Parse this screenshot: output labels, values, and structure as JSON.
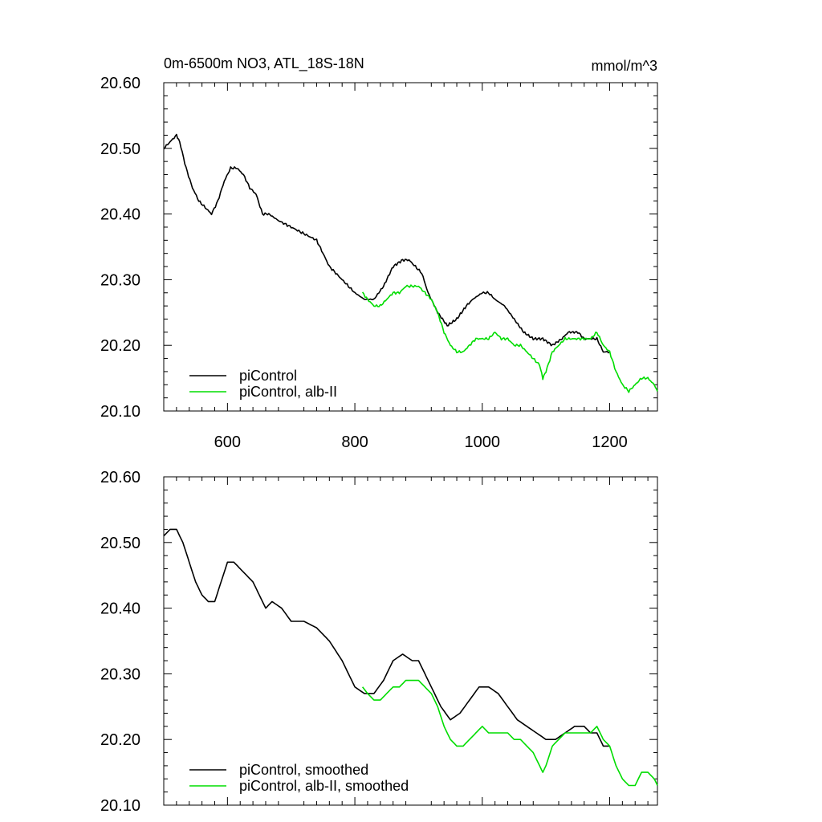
{
  "chart_data": [
    {
      "type": "line",
      "title": "0m-6500m NO3, ATL_18S-18N",
      "units": "mmol/m^3",
      "xlabel": "",
      "ylabel": "",
      "xlim": [
        500,
        1275
      ],
      "ylim": [
        20.1,
        20.6
      ],
      "x_ticks": [
        600,
        800,
        1000,
        1200
      ],
      "x_tick_labels": [
        "600",
        "800",
        "1000",
        "1200"
      ],
      "y_ticks": [
        20.1,
        20.2,
        20.3,
        20.4,
        20.5,
        20.6
      ],
      "y_tick_labels": [
        "20.10",
        "20.20",
        "20.30",
        "20.40",
        "20.50",
        "20.60"
      ],
      "grid": false,
      "legend_position": "bottom-left",
      "series": [
        {
          "name": "piControl",
          "color": "#000000",
          "x": [
            500,
            510,
            520,
            525,
            535,
            545,
            555,
            565,
            575,
            585,
            595,
            605,
            615,
            625,
            635,
            645,
            655,
            665,
            680,
            700,
            720,
            740,
            760,
            780,
            800,
            815,
            830,
            845,
            860,
            875,
            885,
            895,
            905,
            915,
            930,
            945,
            960,
            975,
            985,
            1000,
            1010,
            1020,
            1035,
            1050,
            1065,
            1080,
            1095,
            1110,
            1125,
            1135,
            1150,
            1160,
            1170,
            1180,
            1190,
            1200
          ],
          "y": [
            20.5,
            20.51,
            20.52,
            20.51,
            20.47,
            20.44,
            20.42,
            20.41,
            20.4,
            20.42,
            20.45,
            20.47,
            20.47,
            20.46,
            20.44,
            20.43,
            20.4,
            20.4,
            20.39,
            20.38,
            20.37,
            20.36,
            20.32,
            20.3,
            20.28,
            20.27,
            20.27,
            20.29,
            20.32,
            20.33,
            20.33,
            20.32,
            20.31,
            20.28,
            20.25,
            20.23,
            20.24,
            20.26,
            20.27,
            20.28,
            20.28,
            20.27,
            20.26,
            20.24,
            20.22,
            20.21,
            20.21,
            20.2,
            20.21,
            20.22,
            20.22,
            20.21,
            20.21,
            20.21,
            20.19,
            20.19
          ]
        },
        {
          "name": "piControl, alb-II",
          "color": "#00dd00",
          "x": [
            812,
            820,
            830,
            840,
            850,
            860,
            870,
            880,
            890,
            900,
            910,
            920,
            930,
            940,
            950,
            960,
            970,
            980,
            990,
            1000,
            1010,
            1020,
            1030,
            1040,
            1050,
            1060,
            1070,
            1080,
            1090,
            1095,
            1100,
            1110,
            1120,
            1130,
            1140,
            1150,
            1160,
            1170,
            1180,
            1190,
            1200,
            1210,
            1220,
            1230,
            1240,
            1250,
            1260,
            1270,
            1275
          ],
          "y": [
            20.28,
            20.27,
            20.26,
            20.26,
            20.27,
            20.28,
            20.28,
            20.29,
            20.29,
            20.29,
            20.28,
            20.27,
            20.25,
            20.22,
            20.2,
            20.19,
            20.19,
            20.2,
            20.21,
            20.21,
            20.21,
            20.22,
            20.21,
            20.21,
            20.2,
            20.2,
            20.19,
            20.18,
            20.17,
            20.15,
            20.16,
            20.19,
            20.2,
            20.21,
            20.21,
            20.21,
            20.21,
            20.21,
            20.22,
            20.2,
            20.19,
            20.16,
            20.14,
            20.13,
            20.14,
            20.15,
            20.15,
            20.14,
            20.13
          ]
        }
      ]
    },
    {
      "type": "line",
      "title": "",
      "xlabel": "",
      "ylabel": "",
      "xlim": [
        500,
        1275
      ],
      "ylim": [
        20.1,
        20.6
      ],
      "x_ticks": [
        600,
        800,
        1000,
        1200
      ],
      "y_ticks": [
        20.1,
        20.2,
        20.3,
        20.4,
        20.5,
        20.6
      ],
      "y_tick_labels": [
        "20.10",
        "20.20",
        "20.30",
        "20.40",
        "20.50",
        "20.60"
      ],
      "grid": false,
      "legend_position": "bottom-left",
      "series": [
        {
          "name": "piControl, smoothed",
          "color": "#000000",
          "x": [
            500,
            510,
            520,
            530,
            540,
            550,
            560,
            570,
            580,
            590,
            600,
            610,
            620,
            630,
            640,
            650,
            660,
            670,
            685,
            700,
            720,
            740,
            760,
            780,
            800,
            815,
            830,
            845,
            860,
            875,
            890,
            900,
            910,
            920,
            935,
            950,
            965,
            980,
            995,
            1010,
            1025,
            1040,
            1055,
            1070,
            1085,
            1100,
            1115,
            1130,
            1145,
            1160,
            1170,
            1180,
            1190,
            1200
          ],
          "y": [
            20.51,
            20.52,
            20.52,
            20.5,
            20.47,
            20.44,
            20.42,
            20.41,
            20.41,
            20.44,
            20.47,
            20.47,
            20.46,
            20.45,
            20.44,
            20.42,
            20.4,
            20.41,
            20.4,
            20.38,
            20.38,
            20.37,
            20.35,
            20.32,
            20.28,
            20.27,
            20.27,
            20.29,
            20.32,
            20.33,
            20.32,
            20.32,
            20.3,
            20.28,
            20.25,
            20.23,
            20.24,
            20.26,
            20.28,
            20.28,
            20.27,
            20.25,
            20.23,
            20.22,
            20.21,
            20.2,
            20.2,
            20.21,
            20.22,
            20.22,
            20.21,
            20.21,
            20.19,
            20.19
          ]
        },
        {
          "name": "piControl, alb-II, smoothed",
          "color": "#00dd00",
          "x": [
            812,
            820,
            830,
            840,
            850,
            860,
            870,
            880,
            890,
            900,
            910,
            920,
            930,
            940,
            950,
            960,
            970,
            980,
            990,
            1000,
            1010,
            1020,
            1030,
            1040,
            1050,
            1060,
            1070,
            1080,
            1090,
            1095,
            1100,
            1110,
            1120,
            1130,
            1140,
            1150,
            1160,
            1170,
            1180,
            1190,
            1200,
            1210,
            1220,
            1230,
            1240,
            1250,
            1260,
            1270,
            1275
          ],
          "y": [
            20.28,
            20.27,
            20.26,
            20.26,
            20.27,
            20.28,
            20.28,
            20.29,
            20.29,
            20.29,
            20.28,
            20.27,
            20.25,
            20.22,
            20.2,
            20.19,
            20.19,
            20.2,
            20.21,
            20.22,
            20.21,
            20.21,
            20.21,
            20.21,
            20.2,
            20.2,
            20.19,
            20.18,
            20.16,
            20.15,
            20.16,
            20.19,
            20.2,
            20.21,
            20.21,
            20.21,
            20.21,
            20.21,
            20.22,
            20.2,
            20.19,
            20.16,
            20.14,
            20.13,
            20.13,
            20.15,
            20.15,
            20.14,
            20.13
          ]
        }
      ]
    }
  ]
}
